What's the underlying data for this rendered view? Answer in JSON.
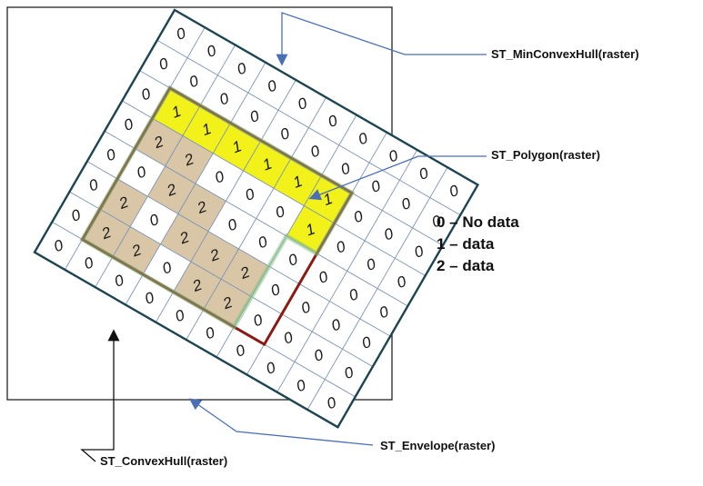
{
  "grid": {
    "rows": [
      [
        0,
        0,
        0,
        0,
        0,
        0,
        0,
        0,
        0,
        0
      ],
      [
        0,
        0,
        0,
        0,
        0,
        0,
        0,
        0,
        0,
        0
      ],
      [
        0,
        1,
        1,
        1,
        1,
        1,
        1,
        0,
        0,
        0
      ],
      [
        0,
        2,
        2,
        0,
        0,
        0,
        1,
        0,
        0,
        0
      ],
      [
        0,
        0,
        2,
        2,
        0,
        0,
        0,
        0,
        0,
        0
      ],
      [
        0,
        2,
        0,
        2,
        2,
        2,
        0,
        0,
        0,
        0
      ],
      [
        0,
        2,
        2,
        0,
        2,
        2,
        0,
        0,
        0,
        0
      ],
      [
        0,
        0,
        0,
        0,
        0,
        0,
        0,
        0,
        0,
        0
      ]
    ],
    "colors": {
      "yellow": "#f2f21a",
      "tan": "#d9c6a6",
      "blank": "#ffffff",
      "gridline": "#7a93b5",
      "convex_border": "#1c4452",
      "minhull_border": "#8c1a14",
      "polygon_border": "#7fbf7f",
      "arrow": "#4a6fb5"
    }
  },
  "labels": {
    "min_convex_hull": "ST_MinConvexHull(raster)",
    "polygon": "ST_Polygon(raster)",
    "convex_hull": "ST_ConvexHull(raster)",
    "envelope": "ST_Envelope(raster)"
  },
  "legend": [
    {
      "text": "0 – No data"
    },
    {
      "text": "1 – data"
    },
    {
      "text": "2 – data"
    }
  ]
}
